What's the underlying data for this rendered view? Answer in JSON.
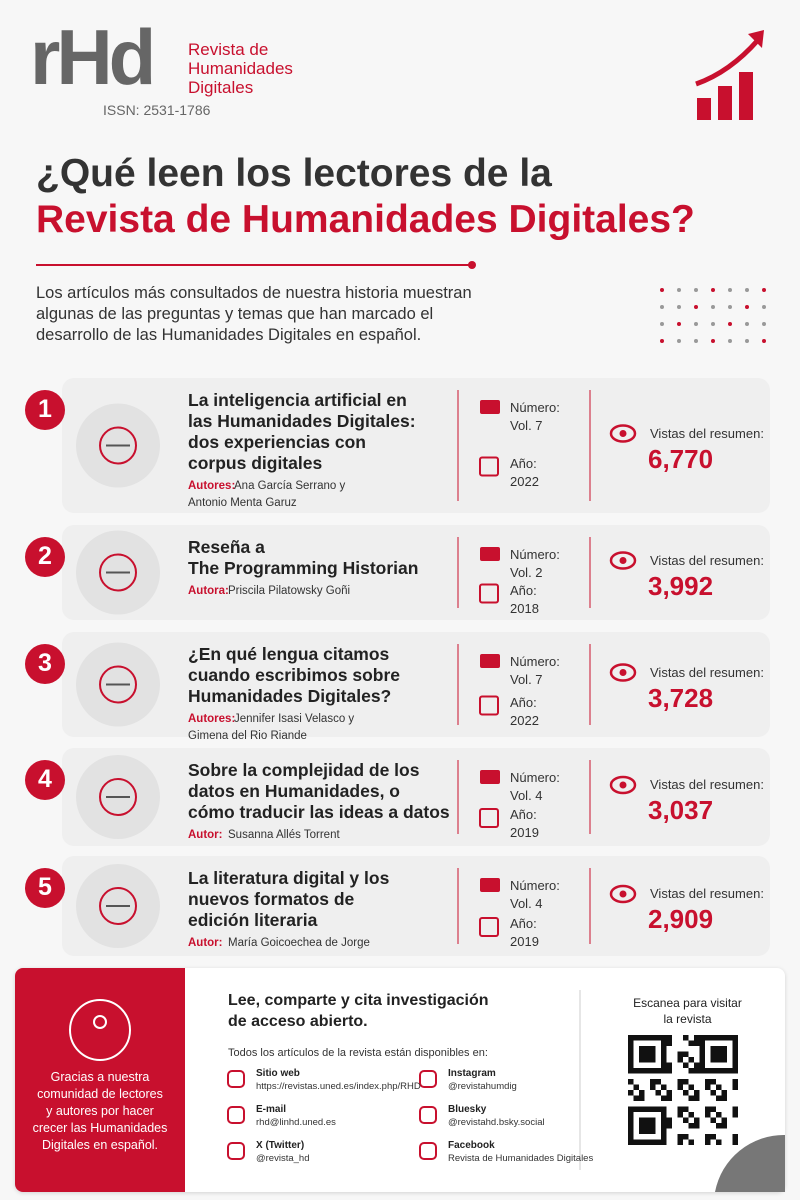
{
  "header": {
    "logo": "rHd",
    "journal_name": [
      "Revista de",
      "Humanidades",
      "Digitales"
    ],
    "issn": "ISSN: 2531-1786"
  },
  "title": {
    "line1": "¿Qué leen los lectores de la",
    "line2": "Revista de Humanidades Digitales?"
  },
  "intro": [
    "Los artículos más consultados de nuestra historia muestran",
    "algunas de las preguntas y temas que han marcado el",
    "desarrollo de las Humanidades Digitales en español."
  ],
  "articles": [
    {
      "rank": "1",
      "title": [
        "La inteligencia artificial en",
        "las Humanidades Digitales:",
        "dos experiencias con",
        "corpus digitales"
      ],
      "authors_label": "Autores:",
      "authors": [
        "Ana García Serrano y",
        "Antonio Menta Garuz"
      ],
      "number_label": "Número:",
      "volume": "Vol. 7",
      "year_label": "Año:",
      "year": "2022",
      "views_label": "Vistas del resumen:",
      "views": "6,770"
    },
    {
      "rank": "2",
      "title": [
        "Reseña a",
        "The Programming Historian"
      ],
      "authors_label": "Autora:",
      "authors": [
        "Priscila Pilatowsky Goñi"
      ],
      "number_label": "Número:",
      "volume": "Vol. 2",
      "year_label": "Año:",
      "year": "2018",
      "views_label": "Vistas del resumen:",
      "views": "3,992"
    },
    {
      "rank": "3",
      "title": [
        "¿En qué lengua citamos",
        "cuando escribimos sobre",
        "Humanidades Digitales?"
      ],
      "authors_label": "Autores:",
      "authors": [
        "Jennifer Isasi Velasco y",
        "Gimena del Rio Riande"
      ],
      "number_label": "Número:",
      "volume": "Vol. 7",
      "year_label": "Año:",
      "year": "2022",
      "views_label": "Vistas del resumen:",
      "views": "3,728"
    },
    {
      "rank": "4",
      "title": [
        "Sobre la complejidad de los",
        "datos en Humanidades, o",
        "cómo traducir las ideas a datos"
      ],
      "authors_label": "Autor:",
      "authors": [
        "Susanna Allés Torrent"
      ],
      "number_label": "Número:",
      "volume": "Vol. 4",
      "year_label": "Año:",
      "year": "2019",
      "views_label": "Vistas del resumen:",
      "views": "3,037"
    },
    {
      "rank": "5",
      "title": [
        "La literatura digital y los",
        "nuevos formatos de",
        "edición literaria"
      ],
      "authors_label": "Autor:",
      "authors": [
        "María Goicoechea de Jorge"
      ],
      "number_label": "Número:",
      "volume": "Vol. 4",
      "year_label": "Año:",
      "year": "2019",
      "views_label": "Vistas del resumen:",
      "views": "2,909"
    }
  ],
  "footer": {
    "thanks": [
      "Gracias a nuestra",
      "comunidad de lectores",
      "y autores por hacer",
      "crecer las Humanidades",
      "Digitales en español."
    ],
    "heading": [
      "Lee, comparte y cita investigación",
      "de acceso abierto."
    ],
    "subheading": "Todos los artículos de la revista están disponibles en:",
    "links": [
      {
        "label": "Sitio web",
        "value": "https://revistas.uned.es/index.php/RHD"
      },
      {
        "label": "Instagram",
        "value": "@revistahumdig"
      },
      {
        "label": "E-mail",
        "value": "rhd@linhd.uned.es"
      },
      {
        "label": "Bluesky",
        "value": "@revistahd.bsky.social"
      },
      {
        "label": "X (Twitter)",
        "value": "@revista_hd"
      },
      {
        "label": "Facebook",
        "value": "Revista de Humanidades Digitales"
      }
    ],
    "qr_label": [
      "Escanea para visitar",
      "la revista"
    ]
  }
}
